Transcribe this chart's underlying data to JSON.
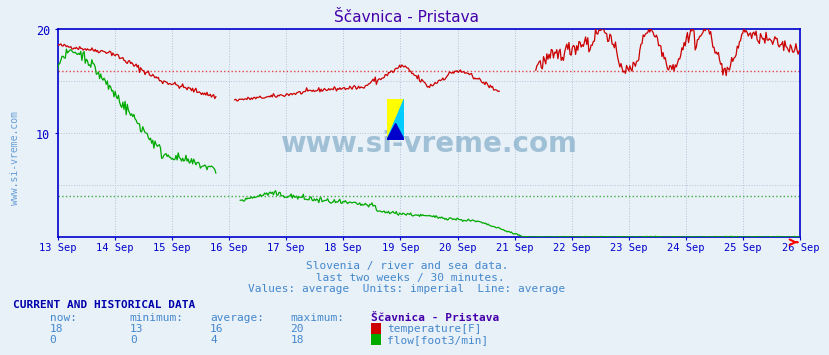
{
  "title": "Ščavnica - Pristava",
  "bg_color": "#e8f0f8",
  "plot_bg_color": "#e8f0f8",
  "grid_color": "#b0c4d8",
  "axis_color": "#0000cc",
  "title_color": "#4400aa",
  "text_color": "#4488cc",
  "table_header_color": "#0000aa",
  "ylim": [
    0,
    20
  ],
  "yticks": [
    10,
    20
  ],
  "date_labels": [
    "13 Sep",
    "14 Sep",
    "15 Sep",
    "16 Sep",
    "17 Sep",
    "18 Sep",
    "19 Sep",
    "20 Sep",
    "21 Sep",
    "22 Sep",
    "23 Sep",
    "24 Sep",
    "25 Sep",
    "26 Sep"
  ],
  "temp_avg_line": 16,
  "flow_avg_line": 4,
  "subtitle1": "Slovenia / river and sea data.",
  "subtitle2": " last two weeks / 30 minutes.",
  "subtitle3": "Values: average  Units: imperial  Line: average",
  "legend_title": "Ščavnica - Pristava",
  "legend_temp_label": "temperature[F]",
  "legend_flow_label": "flow[foot3/min]",
  "table_header": "CURRENT AND HISTORICAL DATA",
  "col_now": "now:",
  "col_min": "minimum:",
  "col_avg": "average:",
  "col_max": "maximum:",
  "temp_now": "18",
  "temp_min": "13",
  "temp_avg": "16",
  "temp_max": "20",
  "flow_now": "0",
  "flow_min": "0",
  "flow_avg": "4",
  "flow_max": "18",
  "temp_color": "#cc0000",
  "flow_color": "#00aa00",
  "watermark_color": "#6699bb",
  "avg_dot_color_temp": "#dd4444",
  "avg_dot_color_flow": "#44aa44"
}
